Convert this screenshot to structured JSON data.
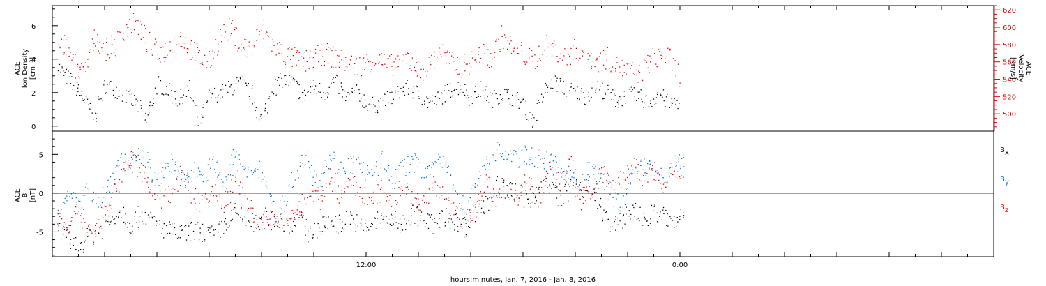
{
  "colors": {
    "black": "#000000",
    "red": "#e00000",
    "blue": "#0070d0",
    "frame": "#000000"
  },
  "chart_data": [
    {
      "type": "scatter",
      "panel": "top",
      "title": "",
      "ylabel_lines": [
        "ACE",
        "Ion Density",
        "[cm⁻³]"
      ],
      "ylim": [
        -0.3,
        7.2
      ],
      "yticks": [
        0,
        2,
        4,
        6
      ],
      "y2label_lines": [
        "ACE",
        "Velocity",
        "[km/s]"
      ],
      "y2lim": [
        480,
        625
      ],
      "y2ticks": [
        500,
        520,
        540,
        560,
        580,
        600,
        620
      ],
      "xlim_hours": [
        0,
        36
      ],
      "grid": false,
      "series": [
        {
          "axis": "left",
          "color": "black",
          "x_hours": [
            0.2,
            0.5,
            0.9,
            1.2,
            1.6,
            2.0,
            2.4,
            2.8,
            3.2,
            3.6,
            4.0,
            4.4,
            4.8,
            5.2,
            5.6,
            6.0,
            6.4,
            6.8,
            7.2,
            7.6,
            8.0,
            8.4,
            8.8,
            9.2,
            9.6,
            10.0,
            10.4,
            10.8,
            11.2,
            11.6,
            12.0,
            12.4,
            12.8,
            13.2,
            13.6,
            14.0,
            14.4,
            14.8,
            15.2,
            15.6,
            16.0,
            16.4,
            16.8,
            17.2,
            17.6,
            18.0,
            18.4,
            18.8,
            19.2,
            19.6,
            20.0,
            20.4,
            20.8,
            21.2,
            21.6,
            22.0,
            22.4,
            22.8,
            23.2,
            23.6,
            24.0
          ],
          "values": [
            3.6,
            3.0,
            2.4,
            1.6,
            0.5,
            2.5,
            2.2,
            1.8,
            1.4,
            0.3,
            2.6,
            2.2,
            1.5,
            2.3,
            0.2,
            1.8,
            2.0,
            2.3,
            2.6,
            2.0,
            0.3,
            2.2,
            2.8,
            2.6,
            1.8,
            2.4,
            2.0,
            2.8,
            1.7,
            2.1,
            1.4,
            1.3,
            1.6,
            2.0,
            2.3,
            1.9,
            1.4,
            1.7,
            2.2,
            2.4,
            1.7,
            2.2,
            1.6,
            2.0,
            1.7,
            1.4,
            0.2,
            2.1,
            2.6,
            2.3,
            2.0,
            1.8,
            2.4,
            2.0,
            1.5,
            1.9,
            1.8,
            1.4,
            2.0,
            1.3,
            1.6
          ]
        },
        {
          "axis": "right",
          "color": "red",
          "x_hours": [
            0.2,
            0.5,
            0.9,
            1.2,
            1.6,
            2.0,
            2.4,
            2.8,
            3.2,
            3.6,
            4.0,
            4.4,
            4.8,
            5.2,
            5.6,
            6.0,
            6.4,
            6.8,
            7.2,
            7.6,
            8.0,
            8.4,
            8.8,
            9.2,
            9.6,
            10.0,
            10.4,
            10.8,
            11.2,
            11.6,
            12.0,
            12.4,
            12.8,
            13.2,
            13.6,
            14.0,
            14.4,
            14.8,
            15.2,
            15.6,
            16.0,
            16.4,
            16.8,
            17.2,
            17.6,
            18.0,
            18.4,
            18.8,
            19.2,
            19.6,
            20.0,
            20.4,
            20.8,
            21.2,
            21.6,
            22.0,
            22.4,
            22.8,
            23.2,
            23.6,
            24.0
          ],
          "values": [
            570,
            585,
            555,
            545,
            590,
            575,
            580,
            600,
            605,
            585,
            570,
            575,
            590,
            580,
            565,
            560,
            590,
            600,
            580,
            575,
            600,
            580,
            570,
            565,
            560,
            565,
            570,
            565,
            560,
            555,
            560,
            565,
            555,
            560,
            565,
            550,
            555,
            575,
            560,
            555,
            560,
            570,
            565,
            590,
            575,
            570,
            560,
            580,
            575,
            565,
            575,
            570,
            560,
            565,
            555,
            550,
            545,
            560,
            570,
            565,
            540
          ]
        }
      ]
    },
    {
      "type": "scatter",
      "panel": "bottom",
      "title": "",
      "ylabel_lines": [
        "ACE",
        "B",
        "[nT]"
      ],
      "ylim": [
        -8.2,
        8.0
      ],
      "yticks": [
        -5,
        0,
        5
      ],
      "zero_line": true,
      "legend": {
        "placement": "right",
        "entries": [
          {
            "label": "B",
            "sub": "x",
            "color": "black"
          },
          {
            "label": "B",
            "sub": "y",
            "color": "blue"
          },
          {
            "label": "B",
            "sub": "z",
            "color": "red"
          }
        ]
      },
      "xlim_hours": [
        0,
        36
      ],
      "xtick_labels": [
        {
          "hour": 12,
          "label": "12:00"
        },
        {
          "hour": 24,
          "label": "0:00"
        }
      ],
      "xlabel": "hours:minutes, Jan.  7, 2016 - Jan.  8, 2016",
      "grid": false,
      "series": [
        {
          "name": "Bx",
          "color": "black",
          "x_hours": [
            0.2,
            0.6,
            1.0,
            1.4,
            1.8,
            2.2,
            2.6,
            3.0,
            3.4,
            3.8,
            4.2,
            4.6,
            5.0,
            5.4,
            5.8,
            6.2,
            6.6,
            7.0,
            7.4,
            7.8,
            8.2,
            8.6,
            9.0,
            9.4,
            9.8,
            10.2,
            10.6,
            11.0,
            11.4,
            11.8,
            12.2,
            12.6,
            13.0,
            13.4,
            13.8,
            14.2,
            14.6,
            15.0,
            15.4,
            15.8,
            16.2,
            16.6,
            17.0,
            17.4,
            17.8,
            18.2,
            18.6,
            19.0,
            19.4,
            19.8,
            20.2,
            20.6,
            21.0,
            21.4,
            21.8,
            22.2,
            22.6,
            23.0,
            23.4,
            23.8,
            24.2
          ],
          "values": [
            -4.5,
            -6.0,
            -7.0,
            -5.5,
            -5.0,
            -3.5,
            -2.0,
            -4.0,
            -2.5,
            -3.5,
            -4.5,
            -5.0,
            -5.2,
            -4.8,
            -5.0,
            -5.5,
            -4.0,
            -2.5,
            -3.5,
            -4.0,
            -3.0,
            -3.5,
            -4.0,
            -3.0,
            -5.0,
            -4.5,
            -3.5,
            -4.0,
            -3.0,
            -4.5,
            -4.0,
            -3.0,
            -3.5,
            -4.0,
            -2.5,
            -3.5,
            -4.0,
            -3.0,
            -3.5,
            -4.5,
            -2.0,
            -1.5,
            1.0,
            0.5,
            0.0,
            -1.0,
            0.5,
            1.0,
            -0.5,
            0.5,
            1.0,
            0.0,
            -2.0,
            -4.8,
            -3.0,
            -2.0,
            -3.5,
            -2.5,
            -3.0,
            -4.0,
            -2.0
          ]
        },
        {
          "name": "By",
          "color": "blue",
          "x_hours": [
            0.2,
            0.6,
            1.0,
            1.4,
            1.8,
            2.2,
            2.6,
            3.0,
            3.4,
            3.8,
            4.2,
            4.6,
            5.0,
            5.4,
            5.8,
            6.2,
            6.6,
            7.0,
            7.4,
            7.8,
            8.2,
            8.6,
            9.0,
            9.4,
            9.8,
            10.2,
            10.6,
            11.0,
            11.4,
            11.8,
            12.2,
            12.6,
            13.0,
            13.4,
            13.8,
            14.2,
            14.6,
            15.0,
            15.4,
            15.8,
            16.2,
            16.6,
            17.0,
            17.4,
            17.8,
            18.2,
            18.6,
            19.0,
            19.4,
            19.8,
            20.2,
            20.6,
            21.0,
            21.4,
            21.8,
            22.2,
            22.6,
            23.0,
            23.4,
            23.8,
            24.2
          ],
          "values": [
            -3.5,
            1.0,
            -2.0,
            0.5,
            -1.0,
            1.5,
            4.5,
            3.5,
            5.0,
            3.0,
            2.0,
            4.0,
            1.5,
            3.0,
            2.5,
            4.0,
            1.0,
            5.5,
            2.0,
            4.0,
            1.0,
            -3.0,
            0.5,
            3.5,
            4.5,
            1.5,
            5.0,
            3.0,
            4.0,
            3.5,
            2.0,
            4.5,
            1.5,
            3.5,
            4.0,
            3.0,
            4.0,
            3.5,
            1.0,
            -2.5,
            1.5,
            4.0,
            5.5,
            5.0,
            4.5,
            5.0,
            4.5,
            4.0,
            3.0,
            2.5,
            1.0,
            3.5,
            1.5,
            0.0,
            -2.0,
            3.0,
            4.0,
            3.0,
            1.5,
            4.0,
            4.5
          ]
        },
        {
          "name": "Bz",
          "color": "red",
          "x_hours": [
            0.2,
            0.6,
            1.0,
            1.4,
            1.8,
            2.2,
            2.6,
            3.0,
            3.4,
            3.8,
            4.2,
            4.6,
            5.0,
            5.4,
            5.8,
            6.2,
            6.6,
            7.0,
            7.4,
            7.8,
            8.2,
            8.6,
            9.0,
            9.4,
            9.8,
            10.2,
            10.6,
            11.0,
            11.4,
            11.8,
            12.2,
            12.6,
            13.0,
            13.4,
            13.8,
            14.2,
            14.6,
            15.0,
            15.4,
            15.8,
            16.2,
            16.6,
            17.0,
            17.4,
            17.8,
            18.2,
            18.6,
            19.0,
            19.4,
            19.8,
            20.2,
            20.6,
            21.0,
            21.4,
            21.8,
            22.2,
            22.6,
            23.0,
            23.4,
            23.8,
            24.2
          ],
          "values": [
            -3.0,
            -4.0,
            -2.0,
            -5.0,
            -3.5,
            -1.5,
            2.0,
            4.5,
            3.0,
            1.0,
            -1.0,
            0.5,
            2.0,
            -0.5,
            -1.5,
            0.5,
            -2.0,
            2.5,
            -1.0,
            -3.5,
            -4.0,
            -3.0,
            -3.5,
            -2.5,
            0.5,
            -1.0,
            2.0,
            -0.5,
            1.5,
            0.0,
            -1.0,
            0.5,
            -2.0,
            1.0,
            -0.5,
            -1.5,
            1.0,
            -0.5,
            -2.5,
            -4.0,
            -1.0,
            1.5,
            -1.0,
            0.5,
            -0.5,
            2.0,
            -1.0,
            3.0,
            1.5,
            4.0,
            -1.0,
            0.5,
            2.5,
            1.0,
            2.0,
            3.5,
            2.0,
            3.0,
            1.0,
            3.5,
            2.5
          ]
        }
      ]
    }
  ]
}
